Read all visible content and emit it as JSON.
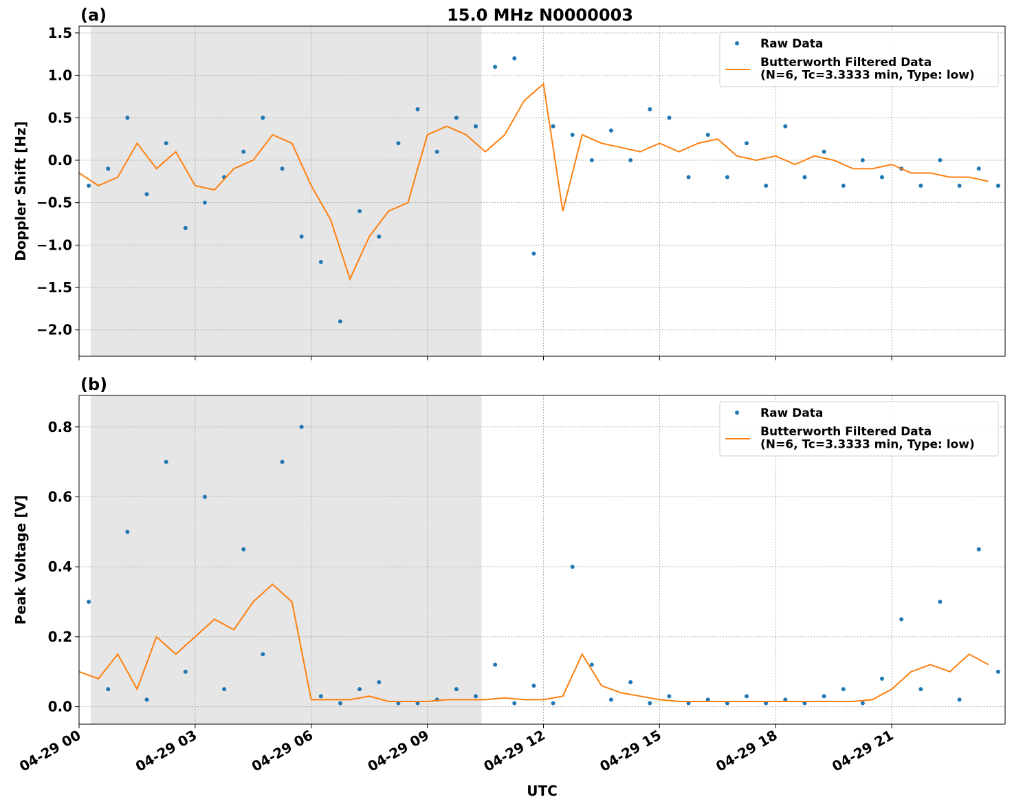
{
  "chart_data": [
    {
      "type": "line",
      "panel_label": "(a)",
      "title": "15.0 MHz N0000003",
      "ylabel": "Doppler Shift [Hz]",
      "xlim": [
        0,
        23.93
      ],
      "xticks": [
        0,
        3,
        6,
        9,
        12,
        15,
        18,
        21
      ],
      "xticklabels": false,
      "ylim": [
        -2.31,
        1.58
      ],
      "yticks": [
        {
          "value": -2.0,
          "label": "−2.0"
        },
        {
          "value": -1.5,
          "label": "−1.5"
        },
        {
          "value": -1.0,
          "label": "−1.0"
        },
        {
          "value": -0.5,
          "label": "−0.5"
        },
        {
          "value": 0,
          "label": "0.0"
        },
        0.5,
        {
          "value": 1,
          "label": "1.0"
        },
        1.5
      ],
      "grid": true,
      "legend": "upper right",
      "shaded_span": [
        0.3,
        10.4
      ],
      "series": [
        {
          "name": "Raw Data",
          "color": "#1f77b4",
          "style": "markers",
          "x": [
            0.25,
            0.75,
            1.25,
            1.75,
            2.25,
            2.75,
            3.25,
            3.75,
            4.25,
            4.75,
            5.25,
            5.75,
            6.25,
            6.75,
            7.25,
            7.75,
            8.25,
            8.75,
            9.25,
            9.75,
            10.25,
            10.75,
            11.25,
            11.75,
            12.25,
            12.75,
            13.25,
            13.75,
            14.25,
            14.75,
            15.25,
            15.75,
            16.25,
            16.75,
            17.25,
            17.75,
            18.25,
            18.75,
            19.25,
            19.75,
            20.25,
            20.75,
            21.25,
            21.75,
            22.25,
            22.75,
            23.25,
            23.75
          ],
          "values": [
            -0.3,
            -0.1,
            0.5,
            -0.4,
            0.2,
            -0.8,
            -0.5,
            -0.2,
            0.1,
            0.5,
            -0.1,
            -0.9,
            -1.2,
            -1.9,
            -0.6,
            -0.9,
            0.2,
            0.6,
            0.1,
            0.5,
            0.4,
            1.1,
            1.2,
            -1.1,
            0.4,
            0.3,
            0.0,
            0.35,
            0.0,
            0.6,
            0.5,
            -0.2,
            0.3,
            -0.2,
            0.2,
            -0.3,
            0.4,
            -0.2,
            0.1,
            -0.3,
            0.0,
            -0.2,
            -0.1,
            -0.3,
            0.0,
            -0.3,
            -0.1,
            -0.3
          ]
        },
        {
          "name": "Butterworth Filtered Data\n(N=6, Tc=3.3333 min, Type: low)",
          "color": "#ff7f0e",
          "style": "line",
          "x": [
            0,
            0.5,
            1,
            1.5,
            2,
            2.5,
            3,
            3.5,
            4,
            4.5,
            5,
            5.5,
            6,
            6.5,
            7,
            7.5,
            8,
            8.5,
            9,
            9.5,
            10,
            10.5,
            11,
            11.5,
            12,
            12.5,
            13,
            13.5,
            14,
            14.5,
            15,
            15.5,
            16,
            16.5,
            17,
            17.5,
            18,
            18.5,
            19,
            19.5,
            20,
            20.5,
            21,
            21.5,
            22,
            22.5,
            23,
            23.5
          ],
          "values": [
            -0.15,
            -0.3,
            -0.2,
            0.2,
            -0.1,
            0.1,
            -0.3,
            -0.35,
            -0.1,
            0.0,
            0.3,
            0.2,
            -0.3,
            -0.7,
            -1.4,
            -0.9,
            -0.6,
            -0.5,
            0.3,
            0.4,
            0.3,
            0.1,
            0.3,
            0.7,
            0.9,
            -0.6,
            0.3,
            0.2,
            0.15,
            0.1,
            0.2,
            0.1,
            0.2,
            0.25,
            0.05,
            0.0,
            0.05,
            -0.05,
            0.05,
            0.0,
            -0.1,
            -0.1,
            -0.05,
            -0.15,
            -0.15,
            -0.2,
            -0.2,
            -0.25
          ]
        }
      ]
    },
    {
      "type": "line",
      "panel_label": "(b)",
      "ylabel": "Peak Voltage [V]",
      "xlabel": "UTC",
      "xlim": [
        0,
        23.93
      ],
      "xticks": [
        {
          "value": 0,
          "label": "04-29 00"
        },
        {
          "value": 3,
          "label": "04-29 03"
        },
        {
          "value": 6,
          "label": "04-29 06"
        },
        {
          "value": 9,
          "label": "04-29 09"
        },
        {
          "value": 12,
          "label": "04-29 12"
        },
        {
          "value": 15,
          "label": "04-29 15"
        },
        {
          "value": 18,
          "label": "04-29 18"
        },
        {
          "value": 21,
          "label": "04-29 21"
        }
      ],
      "xticklabels": true,
      "ylim": [
        -0.05,
        0.89
      ],
      "yticks": [
        {
          "value": 0,
          "label": "0.0"
        },
        0.2,
        0.4,
        0.6,
        0.8
      ],
      "grid": true,
      "legend": "upper right",
      "shaded_span": [
        0.3,
        10.4
      ],
      "series": [
        {
          "name": "Raw Data",
          "color": "#1f77b4",
          "style": "markers",
          "x": [
            0.25,
            0.75,
            1.25,
            1.75,
            2.25,
            2.75,
            3.25,
            3.75,
            4.25,
            4.75,
            5.25,
            5.75,
            6.25,
            6.75,
            7.25,
            7.75,
            8.25,
            8.75,
            9.25,
            9.75,
            10.25,
            10.75,
            11.25,
            11.75,
            12.25,
            12.75,
            13.25,
            13.75,
            14.25,
            14.75,
            15.25,
            15.75,
            16.25,
            16.75,
            17.25,
            17.75,
            18.25,
            18.75,
            19.25,
            19.75,
            20.25,
            20.75,
            21.25,
            21.75,
            22.25,
            22.75,
            23.25,
            23.75
          ],
          "values": [
            0.3,
            0.05,
            0.5,
            0.02,
            0.7,
            0.1,
            0.6,
            0.05,
            0.45,
            0.15,
            0.7,
            0.8,
            0.03,
            0.01,
            0.05,
            0.07,
            0.01,
            0.01,
            0.02,
            0.05,
            0.03,
            0.12,
            0.01,
            0.06,
            0.01,
            0.4,
            0.12,
            0.02,
            0.07,
            0.01,
            0.03,
            0.01,
            0.02,
            0.01,
            0.03,
            0.01,
            0.02,
            0.01,
            0.03,
            0.05,
            0.01,
            0.08,
            0.25,
            0.05,
            0.3,
            0.02,
            0.45,
            0.1
          ]
        },
        {
          "name": "Butterworth Filtered Data\n(N=6, Tc=3.3333 min, Type: low)",
          "color": "#ff7f0e",
          "style": "line",
          "x": [
            0,
            0.5,
            1,
            1.5,
            2,
            2.5,
            3,
            3.5,
            4,
            4.5,
            5,
            5.5,
            6,
            6.5,
            7,
            7.5,
            8,
            8.5,
            9,
            9.5,
            10,
            10.5,
            11,
            11.5,
            12,
            12.5,
            13,
            13.5,
            14,
            14.5,
            15,
            15.5,
            16,
            16.5,
            17,
            17.5,
            18,
            18.5,
            19,
            19.5,
            20,
            20.5,
            21,
            21.5,
            22,
            22.5,
            23,
            23.5
          ],
          "values": [
            0.1,
            0.08,
            0.15,
            0.05,
            0.2,
            0.15,
            0.2,
            0.25,
            0.22,
            0.3,
            0.35,
            0.3,
            0.02,
            0.02,
            0.02,
            0.03,
            0.015,
            0.015,
            0.015,
            0.02,
            0.02,
            0.02,
            0.025,
            0.02,
            0.02,
            0.03,
            0.15,
            0.06,
            0.04,
            0.03,
            0.02,
            0.015,
            0.015,
            0.015,
            0.015,
            0.015,
            0.015,
            0.015,
            0.015,
            0.015,
            0.015,
            0.02,
            0.05,
            0.1,
            0.12,
            0.1,
            0.15,
            0.12
          ]
        }
      ]
    }
  ]
}
